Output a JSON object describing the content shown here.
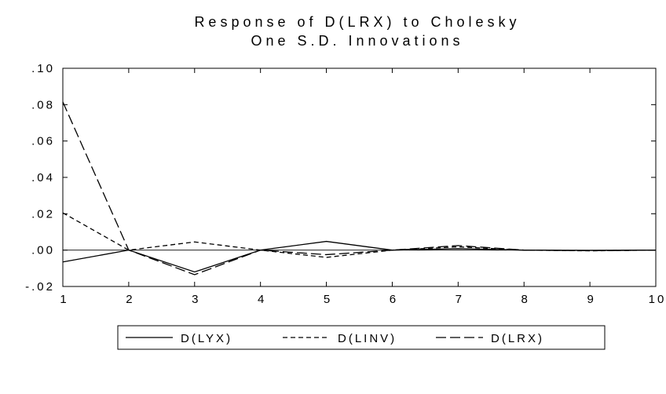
{
  "chart_data": {
    "type": "line",
    "title": "Response of D(LRX) to Cholesky",
    "subtitle": "One S.D. Innovations",
    "xlabel": "",
    "ylabel": "",
    "x": [
      1,
      2,
      3,
      4,
      5,
      6,
      7,
      8,
      9,
      10
    ],
    "x_tick_labels": [
      "1",
      "2",
      "3",
      "4",
      "5",
      "6",
      "7",
      "8",
      "9",
      "10"
    ],
    "xlim": [
      1,
      10
    ],
    "ylim": [
      -0.02,
      0.1
    ],
    "y_ticks": [
      -0.02,
      0.0,
      0.02,
      0.04,
      0.06,
      0.08,
      0.1
    ],
    "y_tick_labels": [
      "-.02",
      ".00",
      ".02",
      ".04",
      ".06",
      ".08",
      ".10"
    ],
    "zero_line": true,
    "grid": false,
    "legend_position": "bottom",
    "series": [
      {
        "name": "D(LYX)",
        "dash": "solid",
        "color": "#000000",
        "values": [
          -0.0065,
          0.0,
          -0.012,
          0.0,
          0.0048,
          0.0,
          0.0008,
          0.0,
          -0.0002,
          0.0
        ]
      },
      {
        "name": "D(LINV)",
        "dash": "short-dash",
        "color": "#000000",
        "values": [
          0.0205,
          0.0,
          0.0045,
          0.0,
          -0.004,
          0.0,
          0.0018,
          0.0,
          -0.0004,
          0.0
        ]
      },
      {
        "name": "D(LRX)",
        "dash": "long-dash",
        "color": "#000000",
        "values": [
          0.0815,
          0.0,
          -0.0135,
          0.0,
          -0.0025,
          0.0,
          0.0025,
          0.0,
          -0.0003,
          0.0
        ]
      }
    ]
  }
}
